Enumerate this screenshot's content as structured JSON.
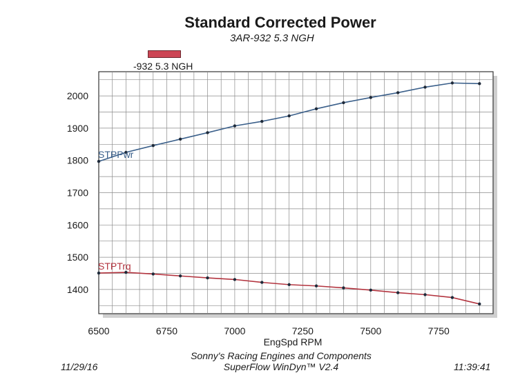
{
  "chart_data": {
    "type": "line",
    "title": "Standard Corrected Power",
    "subtitle": "3AR-932 5.3 NGH",
    "legend_label": "-932 5.3 NGH",
    "xlabel": "EngSpd  RPM",
    "ylabel": "",
    "xlim": [
      6500,
      7950
    ],
    "ylim": [
      1325,
      2075
    ],
    "x_ticks": [
      6500,
      6750,
      7000,
      7250,
      7500,
      7750
    ],
    "y_ticks": [
      1400,
      1500,
      1600,
      1700,
      1800,
      1900,
      2000
    ],
    "grid": true,
    "x": [
      6500,
      6600,
      6700,
      6800,
      6900,
      7000,
      7100,
      7200,
      7300,
      7400,
      7500,
      7600,
      7700,
      7800,
      7900
    ],
    "series": [
      {
        "name": "STPPwr",
        "color": "#3a5f8a",
        "values": [
          1797,
          1825,
          1846,
          1866,
          1886,
          1907,
          1921,
          1938,
          1960,
          1979,
          1995,
          2010,
          2027,
          2040,
          2038
        ]
      },
      {
        "name": "STPTrq",
        "color": "#b3343f",
        "values": [
          1451,
          1453,
          1448,
          1442,
          1436,
          1431,
          1422,
          1415,
          1411,
          1405,
          1398,
          1390,
          1384,
          1375,
          1355
        ]
      }
    ]
  },
  "footer": {
    "date": "11/29/16",
    "time": "11:39:41",
    "company": "Sonny's Racing Engines and Components",
    "software": "SuperFlow WinDyn™ V2.4"
  }
}
